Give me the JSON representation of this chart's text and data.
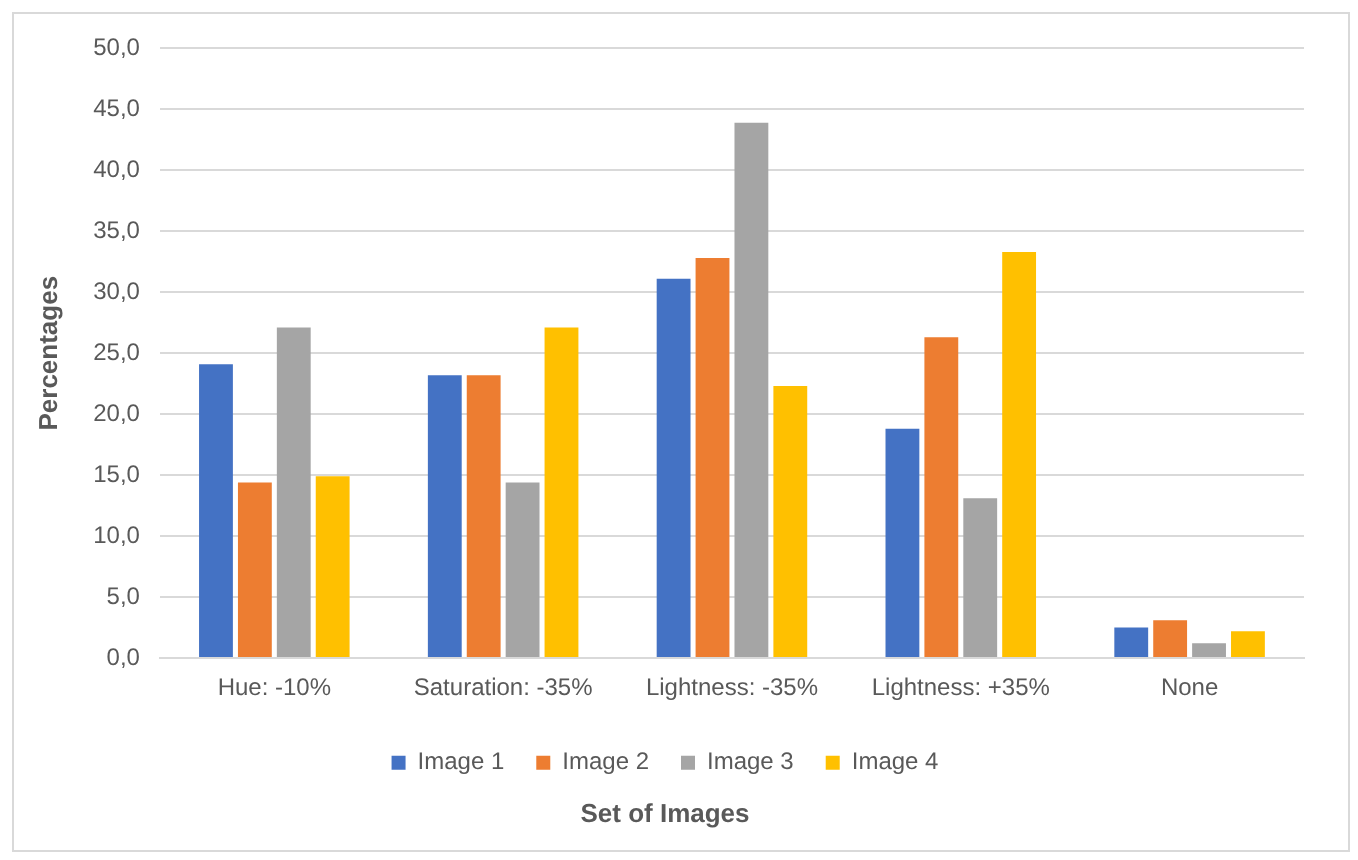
{
  "chart_data": {
    "type": "bar",
    "xlabel": "Set of Images",
    "ylabel": "Percentages",
    "categories": [
      "Hue: -10%",
      "Saturation: -35%",
      "Lightness: -35%",
      "Lightness: +35%",
      "None"
    ],
    "series": [
      {
        "name": "Image 1",
        "color": "#4472c4",
        "values": [
          24.1,
          23.2,
          31.1,
          18.8,
          2.5
        ]
      },
      {
        "name": "Image 2",
        "color": "#ed7d31",
        "values": [
          14.4,
          23.2,
          32.8,
          26.3,
          3.1
        ]
      },
      {
        "name": "Image 3",
        "color": "#a5a5a5",
        "values": [
          27.1,
          14.4,
          43.9,
          13.1,
          1.2
        ]
      },
      {
        "name": "Image 4",
        "color": "#ffc000",
        "values": [
          14.9,
          27.1,
          22.3,
          33.3,
          2.2
        ]
      }
    ],
    "ylim": [
      0,
      50
    ],
    "yticks": [
      {
        "value": 0,
        "label": "0,0"
      },
      {
        "value": 5,
        "label": "5,0"
      },
      {
        "value": 10,
        "label": "10,0"
      },
      {
        "value": 15,
        "label": "15,0"
      },
      {
        "value": 20,
        "label": "20,0"
      },
      {
        "value": 25,
        "label": "25,0"
      },
      {
        "value": 30,
        "label": "30,0"
      },
      {
        "value": 35,
        "label": "35,0"
      },
      {
        "value": 40,
        "label": "40,0"
      },
      {
        "value": 45,
        "label": "45,0"
      },
      {
        "value": 50,
        "label": "50,0"
      }
    ],
    "grid": "y",
    "legend": "bottom"
  }
}
